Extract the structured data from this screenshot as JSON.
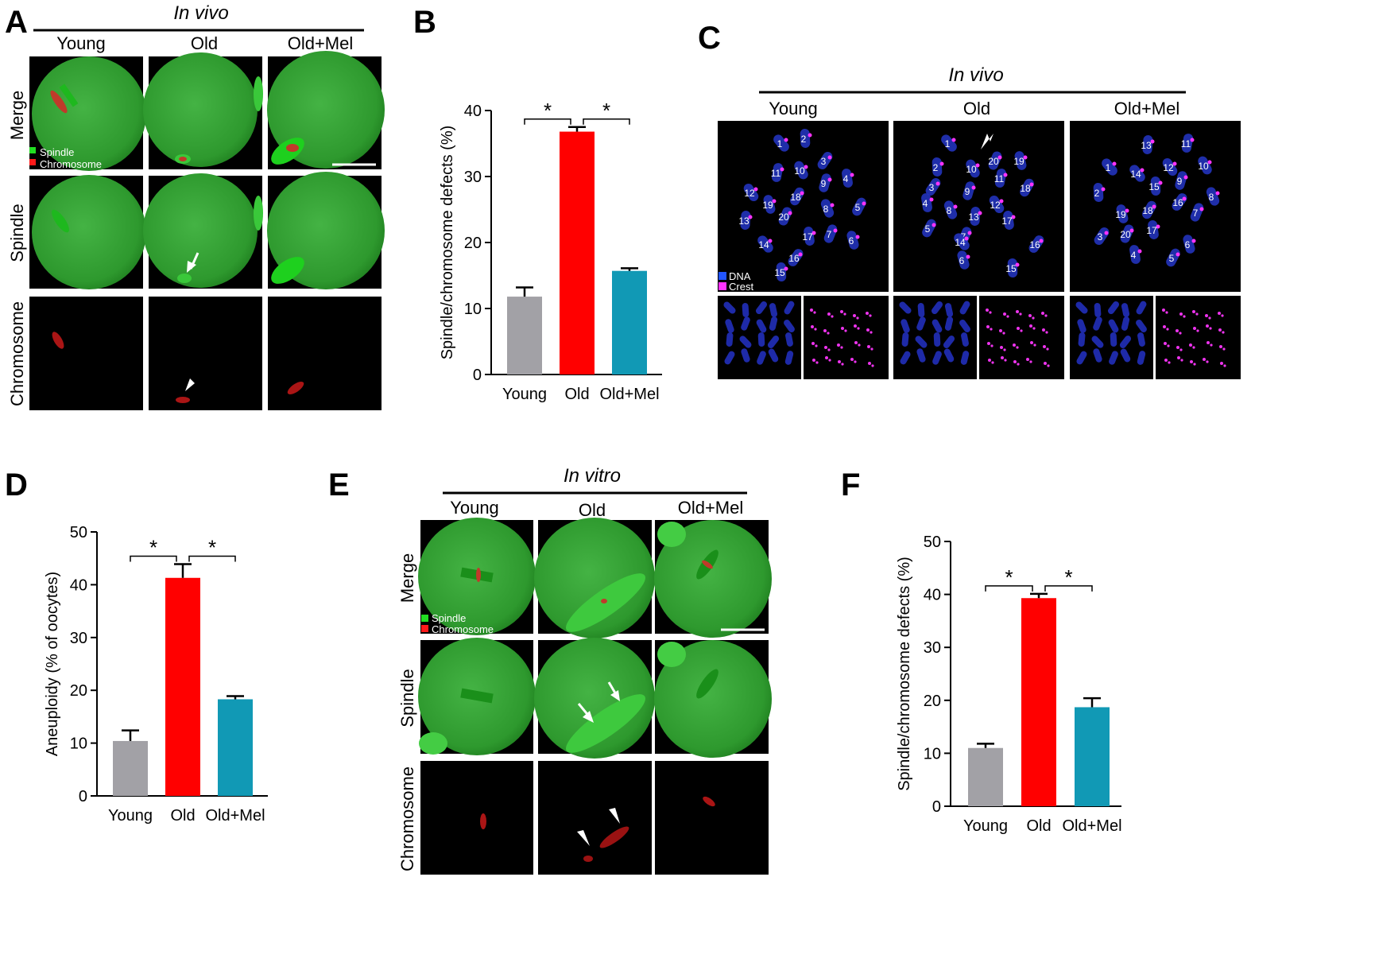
{
  "panel_letters": [
    "A",
    "B",
    "C",
    "D",
    "E",
    "F"
  ],
  "panel_a": {
    "condition": "In vivo",
    "columns": [
      "Young",
      "Old",
      "Old+Mel"
    ],
    "rows": [
      "Merge",
      "Spindle",
      "Chromosome"
    ],
    "legend": [
      {
        "label": "Spindle",
        "color": "#22dd22"
      },
      {
        "label": "Chromosome",
        "color": "#ff1a1a"
      }
    ]
  },
  "panel_c": {
    "condition": "In vivo",
    "columns": [
      "Young",
      "Old",
      "Old+Mel"
    ],
    "legend": [
      {
        "label": "DNA",
        "color": "#2255ff"
      },
      {
        "label": "Crest",
        "color": "#ff33ff"
      }
    ],
    "chromosome_numbers": [
      "1",
      "2",
      "3",
      "4",
      "5",
      "6",
      "7",
      "8",
      "9",
      "10",
      "11",
      "12",
      "13",
      "14",
      "15",
      "16",
      "17",
      "18",
      "19",
      "20"
    ]
  },
  "panel_e": {
    "condition": "In vitro",
    "columns": [
      "Young",
      "Old",
      "Old+Mel"
    ],
    "rows": [
      "Merge",
      "Spindle",
      "Chromosome"
    ],
    "legend": [
      {
        "label": "Spindle",
        "color": "#22dd22"
      },
      {
        "label": "Chromosome",
        "color": "#ff1a1a"
      }
    ]
  },
  "chart_data": [
    {
      "panel": "B",
      "type": "bar",
      "categories": [
        "Young",
        "Old",
        "Old+Mel"
      ],
      "values": [
        11.8,
        36.8,
        15.7
      ],
      "errors": [
        1.4,
        0.7,
        0.4
      ],
      "colors": [
        "#a2a1a6",
        "#ff0000",
        "#1199b5"
      ],
      "ylabel": "Spindle/chromosome defects (%)",
      "ylim": [
        0,
        40
      ],
      "yticks": [
        0,
        10,
        20,
        30,
        40
      ],
      "significance": [
        "*",
        "*"
      ]
    },
    {
      "panel": "D",
      "type": "bar",
      "categories": [
        "Young",
        "Old",
        "Old+Mel"
      ],
      "values": [
        10.4,
        41.3,
        18.3
      ],
      "errors": [
        2.0,
        2.6,
        0.6
      ],
      "colors": [
        "#a2a1a6",
        "#ff0000",
        "#1199b5"
      ],
      "ylabel": "Aneuploidy (% of oocytes)",
      "ylim": [
        0,
        50
      ],
      "yticks": [
        0,
        10,
        20,
        30,
        40,
        50
      ],
      "significance": [
        "*",
        "*"
      ]
    },
    {
      "panel": "F",
      "type": "bar",
      "categories": [
        "Young",
        "Old",
        "Old+Mel"
      ],
      "values": [
        11.0,
        39.3,
        18.7
      ],
      "errors": [
        0.8,
        0.8,
        1.7
      ],
      "colors": [
        "#a2a1a6",
        "#ff0000",
        "#1199b5"
      ],
      "ylabel": "Spindle/chromosome defects (%)",
      "ylim": [
        0,
        50
      ],
      "yticks": [
        0,
        10,
        20,
        30,
        40,
        50
      ],
      "significance": [
        "*",
        "*"
      ]
    }
  ]
}
